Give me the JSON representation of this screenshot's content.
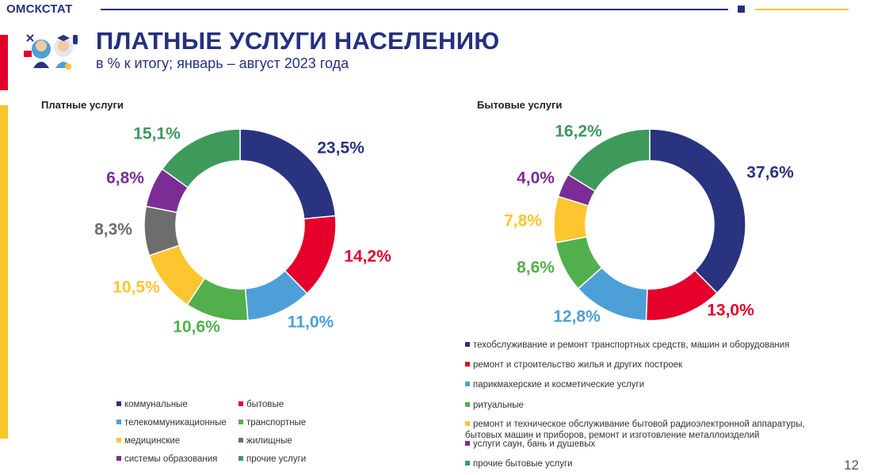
{
  "header": {
    "brand": "ОМСКСТАТ",
    "title": "ПЛАТНЫЕ УСЛУГИ НАСЕЛЕНИЮ",
    "subtitle": "в % к итогу; январь – август 2023 года",
    "page_number": "12"
  },
  "colors": {
    "navy": "#29337f",
    "red": "#e4002b",
    "lightblue": "#4d9fd8",
    "green": "#51b04b",
    "yellow": "#fdc52f",
    "gray": "#6d6d6d",
    "purple": "#7b2d95",
    "darkgreen": "#3d9a5b"
  },
  "chart_data": [
    {
      "type": "pie",
      "title": "Платные услуги",
      "categories": [
        "коммунальные",
        "бытовые",
        "телекоммуникационные",
        "транспортные",
        "медицинские",
        "жилищные",
        "системы образования",
        "прочие услуги"
      ],
      "order": [
        "коммунальные",
        "бытовые",
        "телекоммуникационные",
        "транспортные",
        "медицинские",
        "жилищные",
        "системы образования",
        "прочие услуги"
      ],
      "values": [
        23.5,
        14.2,
        11.0,
        10.6,
        10.5,
        8.3,
        6.8,
        15.1
      ],
      "labels": [
        "23,5%",
        "14,2%",
        "11,0%",
        "10,6%",
        "10,5%",
        "8,3%",
        "6,8%",
        "15,1%"
      ],
      "colors": [
        "#29337f",
        "#e4002b",
        "#4d9fd8",
        "#51b04b",
        "#fdc52f",
        "#6d6d6d",
        "#7b2d95",
        "#3d9a5b"
      ],
      "legend_placement": "bottom"
    },
    {
      "type": "pie",
      "title": "Бытовые услуги",
      "categories": [
        "техобслуживание и ремонт транспортных средств, машин и оборудования",
        "ремонт и строительство жилья и других построек",
        "парикмахерские и косметические услуги",
        "ритуальные",
        "ремонт и техническое обслуживание бытовой радиоэлектронной аппаратуры, бытовых машин и приборов, ремонт и изготовление металлоизделий",
        "услуги саун, бань и душевых",
        "прочие бытовые услуги"
      ],
      "values": [
        37.6,
        13.0,
        12.8,
        8.6,
        7.8,
        4.0,
        16.2
      ],
      "labels": [
        "37,6%",
        "13,0%",
        "12,8%",
        "8,6%",
        "7,8%",
        "4,0%",
        "16,2%"
      ],
      "colors": [
        "#29337f",
        "#e4002b",
        "#4d9fd8",
        "#51b04b",
        "#fdc52f",
        "#7b2d95",
        "#3d9a5b"
      ],
      "legend_placement": "bottom"
    }
  ]
}
